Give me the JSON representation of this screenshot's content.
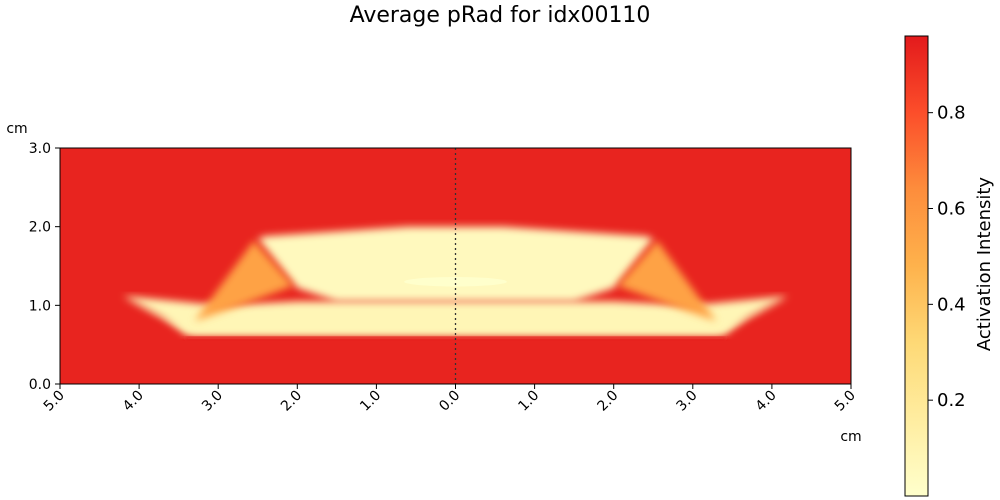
{
  "chart_data": {
    "type": "heatmap",
    "title": "Average pRad for idx00110",
    "x_unit_label": "cm",
    "y_unit_label": "cm",
    "xlim": [
      -5.0,
      5.0
    ],
    "ylim": [
      0.0,
      3.0
    ],
    "x_ticks": [
      -5,
      -4,
      -3,
      -2,
      -1,
      0,
      1,
      2,
      3,
      4,
      5
    ],
    "x_tick_labels": [
      "5.0",
      "4.0",
      "3.0",
      "2.0",
      "1.0",
      "0.0",
      "1.0",
      "2.0",
      "3.0",
      "4.0",
      "5.0"
    ],
    "y_ticks": [
      0,
      1,
      2,
      3
    ],
    "y_tick_labels": [
      "0.0",
      "1.0",
      "2.0",
      "3.0"
    ],
    "center_line_x": 0.0,
    "colormap": "YlOrRd_r",
    "colormap_stops": [
      "#ffffcc",
      "#ffeda0",
      "#fed976",
      "#feb24c",
      "#fd8d3c",
      "#fc4e2a",
      "#e31a1c"
    ],
    "colorbar": {
      "label": "Activation Intensity",
      "range": [
        0.0,
        0.96
      ],
      "ticks": [
        0.2,
        0.4,
        0.6,
        0.8
      ],
      "tick_labels": [
        "0.2",
        "0.4",
        "0.6",
        "0.8"
      ]
    },
    "background_value": 0.93,
    "regions": [
      {
        "name": "base",
        "value": 0.08,
        "polygon": [
          [
            -4.2,
            1.1
          ],
          [
            -3.5,
            0.8
          ],
          [
            -3.2,
            0.8
          ],
          [
            3.2,
            0.8
          ],
          [
            3.5,
            0.8
          ],
          [
            4.2,
            1.1
          ],
          [
            3.3,
            0.65
          ],
          [
            -3.3,
            0.65
          ]
        ]
      },
      {
        "name": "lower-band",
        "value": 0.08,
        "polygon": [
          [
            -4.2,
            1.12
          ],
          [
            -3.7,
            0.85
          ],
          [
            -3.4,
            0.62
          ],
          [
            3.4,
            0.62
          ],
          [
            3.7,
            0.85
          ],
          [
            4.2,
            1.12
          ],
          [
            3.0,
            1.0
          ],
          [
            2.0,
            1.05
          ],
          [
            -2.0,
            1.05
          ],
          [
            -3.0,
            1.0
          ]
        ]
      },
      {
        "name": "upper-band",
        "value": 0.05,
        "polygon": [
          [
            -2.5,
            1.85
          ],
          [
            -2.4,
            1.88
          ],
          [
            -0.6,
            2.0
          ],
          [
            0.6,
            2.0
          ],
          [
            2.4,
            1.88
          ],
          [
            2.5,
            1.85
          ],
          [
            2.0,
            1.22
          ],
          [
            1.5,
            1.05
          ],
          [
            -1.5,
            1.05
          ],
          [
            -2.0,
            1.22
          ]
        ]
      },
      {
        "name": "left-wing",
        "value": 0.55,
        "polygon": [
          [
            -2.55,
            1.82
          ],
          [
            -2.05,
            1.25
          ],
          [
            -2.85,
            0.95
          ],
          [
            -3.3,
            0.8
          ]
        ]
      },
      {
        "name": "right-wing",
        "value": 0.55,
        "polygon": [
          [
            2.55,
            1.82
          ],
          [
            2.05,
            1.25
          ],
          [
            2.85,
            0.95
          ],
          [
            3.3,
            0.8
          ]
        ]
      },
      {
        "name": "bottom-edge",
        "value": 0.97,
        "polygon": [
          [
            -3.45,
            0.6
          ],
          [
            3.45,
            0.6
          ],
          [
            3.4,
            0.56
          ],
          [
            -3.4,
            0.56
          ]
        ]
      },
      {
        "name": "hot-spot",
        "value": 0.0,
        "ellipse": {
          "cx": 0.0,
          "cy": 1.3,
          "rx": 0.65,
          "ry": 0.06
        }
      }
    ]
  }
}
